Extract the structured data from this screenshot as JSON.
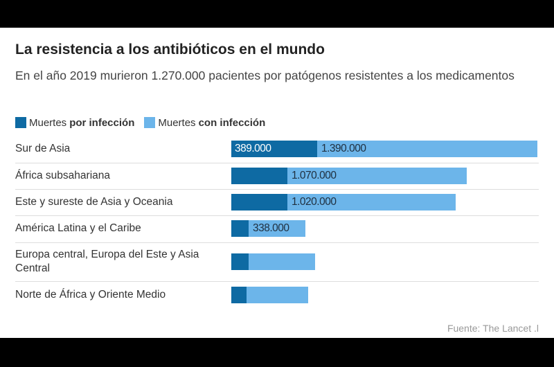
{
  "title": "La resistencia a los antibióticos en el mundo",
  "subtitle": "En el año 2019 murieron 1.270.000 pacientes por patógenos resistentes a los medicamentos",
  "legend": {
    "por": {
      "prefix": "Muertes",
      "bold": "por infección"
    },
    "con": {
      "prefix": "Muertes",
      "bold": "con infección"
    }
  },
  "source": "Fuente: The Lancet .l",
  "colors": {
    "por": "#0e6aa3",
    "con": "#6cb5ea"
  },
  "chart_data": {
    "type": "bar",
    "orientation": "horizontal",
    "stacked": true,
    "categories": [
      "Sur de Asia",
      "África subsahariana",
      "Este y sureste de Asia y Oceania",
      "América Latina y el Caribe",
      "Europa central, Europa del Este y Asia Central",
      "Norte de África y Oriente Medio"
    ],
    "series": [
      {
        "name": "Muertes por infección",
        "values": [
          389000,
          255000,
          255000,
          80000,
          80000,
          70000
        ]
      },
      {
        "name": "Muertes con infección",
        "values": [
          1001000,
          815000,
          765000,
          258000,
          300000,
          280000
        ]
      }
    ],
    "totals": [
      1390000,
      1070000,
      1020000,
      338000,
      380000,
      350000
    ],
    "labels": {
      "por": [
        "389.000",
        "",
        "",
        "",
        "",
        ""
      ],
      "con": [
        "1.390.000",
        "1.070.000",
        "1.020.000",
        "338.000",
        "",
        ""
      ]
    },
    "xlim": [
      0,
      1390000
    ],
    "grid": false,
    "legend_position": "top-left"
  }
}
